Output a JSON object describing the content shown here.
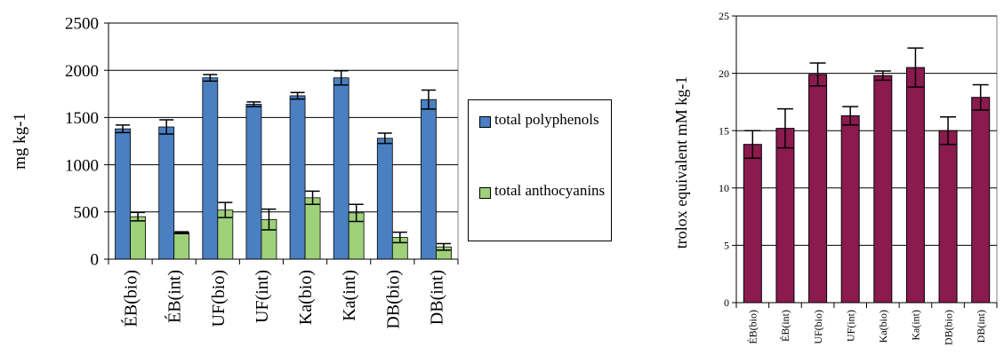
{
  "chart_data": [
    {
      "type": "bar",
      "ylabel": "mg kg-1",
      "ylim": [
        0,
        2500
      ],
      "yticks": [
        "0",
        "500",
        "1000",
        "1500",
        "2000",
        "2500"
      ],
      "grid": true,
      "legend_position": "right",
      "categories": [
        "ÉB(bio)",
        "ÉB(int)",
        "UF(bio)",
        "UF(int)",
        "Ka(bio)",
        "Ka(int)",
        "DB(bio)",
        "DB(int)"
      ],
      "series": [
        {
          "name": "total polyphenols",
          "color": "#4a7fc1",
          "values": [
            1380,
            1400,
            1920,
            1640,
            1730,
            1920,
            1280,
            1690
          ],
          "errors": [
            40,
            75,
            35,
            25,
            35,
            75,
            55,
            100
          ]
        },
        {
          "name": "total anthocyanins",
          "color": "#9fd07a",
          "values": [
            450,
            280,
            520,
            420,
            650,
            490,
            230,
            130
          ],
          "errors": [
            45,
            10,
            80,
            110,
            70,
            90,
            55,
            35
          ]
        }
      ]
    },
    {
      "type": "bar",
      "ylabel": "trolox equivalent mM kg-1",
      "ylim": [
        0,
        25
      ],
      "yticks": [
        "0",
        "5",
        "10",
        "15",
        "20",
        "25"
      ],
      "grid": true,
      "categories": [
        "ÉB(bio)",
        "ÉB(int)",
        "UF(bio)",
        "UF(int)",
        "Ka(bio)",
        "Ka(int)",
        "DB(bio)",
        "DB(int)"
      ],
      "series": [
        {
          "color": "#8b1a4e",
          "values": [
            13.8,
            15.2,
            19.9,
            16.3,
            19.8,
            20.5,
            15.0,
            17.9
          ],
          "errors": [
            1.2,
            1.7,
            1.0,
            0.8,
            0.4,
            1.7,
            1.2,
            1.1
          ]
        }
      ]
    }
  ]
}
